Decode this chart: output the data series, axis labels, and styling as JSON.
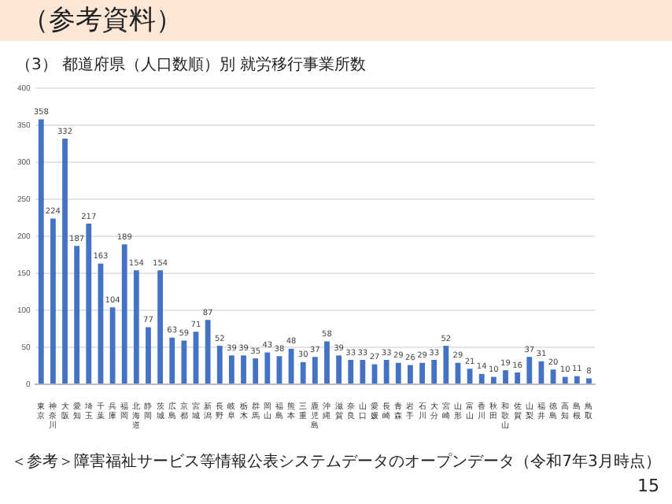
{
  "chart_data": {
    "type": "bar",
    "title": "（参考資料）",
    "subtitle": "（3） 都道府県（人口数順）別 就労移行事業所数",
    "categories": [
      "東京",
      "神奈川",
      "大阪",
      "愛知",
      "埼玉",
      "千葉",
      "兵庫",
      "福岡",
      "北海道",
      "静岡",
      "茨城",
      "広島",
      "京都",
      "宮城",
      "新潟",
      "長野",
      "岐阜",
      "栃木",
      "群馬",
      "岡山",
      "福島",
      "熊本",
      "三重",
      "鹿児島",
      "沖縄",
      "滋賀",
      "奈良",
      "山口",
      "愛媛",
      "長崎",
      "青森",
      "岩手",
      "石川",
      "大分",
      "宮崎",
      "山形",
      "富山",
      "香川",
      "秋田",
      "和歌山",
      "佐賀",
      "山梨",
      "福井",
      "徳島",
      "高知",
      "島根",
      "鳥取"
    ],
    "values": [
      358,
      224,
      332,
      187,
      217,
      163,
      104,
      189,
      154,
      77,
      154,
      63,
      59,
      71,
      87,
      52,
      39,
      39,
      35,
      43,
      38,
      48,
      30,
      37,
      58,
      39,
      33,
      33,
      27,
      33,
      29,
      26,
      29,
      33,
      52,
      29,
      21,
      14,
      10,
      19,
      16,
      37,
      31,
      20,
      10,
      11,
      8
    ],
    "color": "#4472c4",
    "ylim": [
      0,
      400
    ],
    "yticks": [
      0,
      50,
      100,
      150,
      200,
      250,
      300,
      350,
      400
    ],
    "grid": "y",
    "data_labels": true,
    "annotations": [
      "＜参考＞障害福祉サービス等情報公表システムデータのオープンデータ（令和7年3月時点）",
      "15"
    ]
  }
}
